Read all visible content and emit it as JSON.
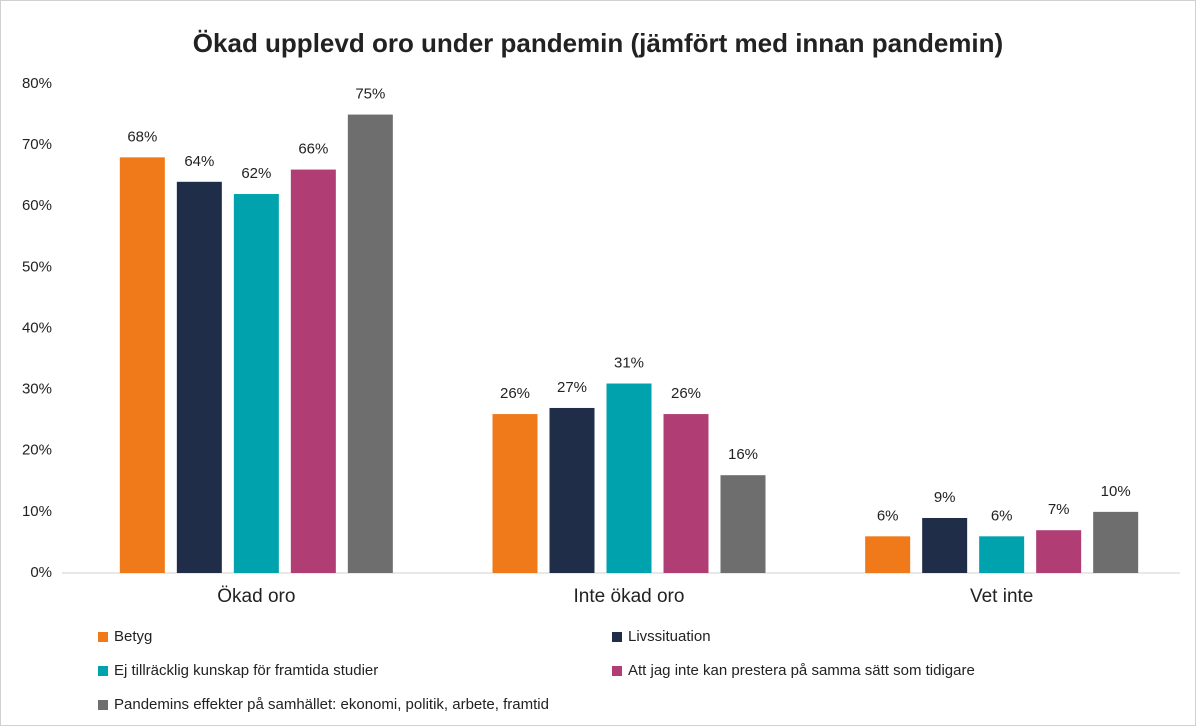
{
  "chart_data": {
    "type": "bar",
    "title": "Ökad upplevd oro under pandemin (jämfört med innan pandemin)",
    "categories": [
      "Ökad oro",
      "Inte ökad oro",
      "Vet inte"
    ],
    "series": [
      {
        "name": "Betyg",
        "color": "#f07a1a",
        "values": [
          68,
          26,
          6
        ],
        "value_labels": [
          "68%",
          "26%",
          "6%"
        ]
      },
      {
        "name": "Livssituation",
        "color": "#1f2d48",
        "values": [
          64,
          27,
          9
        ],
        "value_labels": [
          "64%",
          "27%",
          "9%"
        ]
      },
      {
        "name": "Ej tillräcklig kunskap för framtida studier",
        "color": "#00a3ad",
        "values": [
          62,
          31,
          6
        ],
        "value_labels": [
          "62%",
          "31%",
          "6%"
        ]
      },
      {
        "name": "Att jag inte kan prestera på samma sätt som tidigare",
        "color": "#b03d74",
        "values": [
          66,
          26,
          7
        ],
        "value_labels": [
          "66%",
          "26%",
          "7%"
        ]
      },
      {
        "name": "Pandemins effekter på samhället: ekonomi, politik, arbete, framtid",
        "color": "#6e6e6e",
        "values": [
          75,
          16,
          10
        ],
        "value_labels": [
          "75%",
          "16%",
          "10%"
        ]
      }
    ],
    "ylim": [
      0,
      80
    ],
    "yticks": [
      {
        "value": 0,
        "label": "0%"
      },
      {
        "value": 10,
        "label": "10%"
      },
      {
        "value": 20,
        "label": "20%"
      },
      {
        "value": 30,
        "label": "30%"
      },
      {
        "value": 40,
        "label": "40%"
      },
      {
        "value": 50,
        "label": "50%"
      },
      {
        "value": 60,
        "label": "60%"
      },
      {
        "value": 70,
        "label": "70%"
      },
      {
        "value": 80,
        "label": "80%"
      }
    ],
    "grid": false,
    "legend": "bottom"
  }
}
